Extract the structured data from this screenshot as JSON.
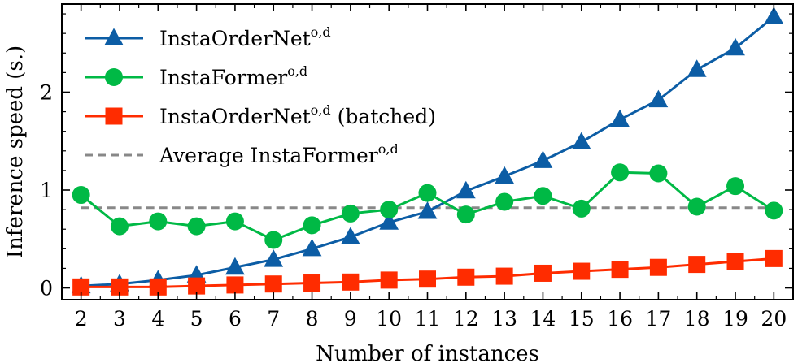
{
  "chart_data": {
    "type": "line",
    "xlabel": "Number of instances",
    "ylabel": "Inference speed (s.)",
    "x": [
      2,
      3,
      4,
      5,
      6,
      7,
      8,
      9,
      10,
      11,
      12,
      13,
      14,
      15,
      16,
      17,
      18,
      19,
      20
    ],
    "xlim": [
      1.5,
      20.5
    ],
    "ylim": [
      -0.12,
      2.9
    ],
    "xticks": [
      "2",
      "3",
      "4",
      "5",
      "6",
      "7",
      "8",
      "9",
      "10",
      "11",
      "12",
      "13",
      "14",
      "15",
      "16",
      "17",
      "18",
      "19",
      "20"
    ],
    "yticks": [
      "0",
      "1",
      "2"
    ],
    "grid": false,
    "legend_position": "top-left",
    "series": [
      {
        "name": "InstaOrderNet",
        "name_sup": "o,d",
        "color": "#0c5da5",
        "marker": "triangle",
        "values": [
          0.02,
          0.04,
          0.08,
          0.13,
          0.21,
          0.29,
          0.4,
          0.52,
          0.67,
          0.78,
          0.99,
          1.14,
          1.3,
          1.49,
          1.72,
          1.92,
          2.23,
          2.45,
          2.77
        ]
      },
      {
        "name": "InstaFormer",
        "name_sup": "o,d",
        "color": "#00b945",
        "marker": "circle",
        "values": [
          0.95,
          0.63,
          0.68,
          0.63,
          0.68,
          0.49,
          0.64,
          0.76,
          0.8,
          0.97,
          0.75,
          0.88,
          0.94,
          0.81,
          1.18,
          1.17,
          0.83,
          1.04,
          0.79
        ]
      },
      {
        "name": "InstaOrderNet",
        "name_sup": "o,d",
        "name_suffix": " (batched)",
        "color": "#ff2c00",
        "marker": "square",
        "values": [
          0.01,
          0.01,
          0.01,
          0.02,
          0.03,
          0.04,
          0.05,
          0.06,
          0.08,
          0.09,
          0.11,
          0.12,
          0.15,
          0.17,
          0.19,
          0.21,
          0.24,
          0.27,
          0.3
        ]
      }
    ],
    "reference_line": {
      "name": "Average InstaFormer",
      "name_sup": "o,d",
      "color": "#888888",
      "style": "dashed",
      "value": 0.82
    }
  }
}
